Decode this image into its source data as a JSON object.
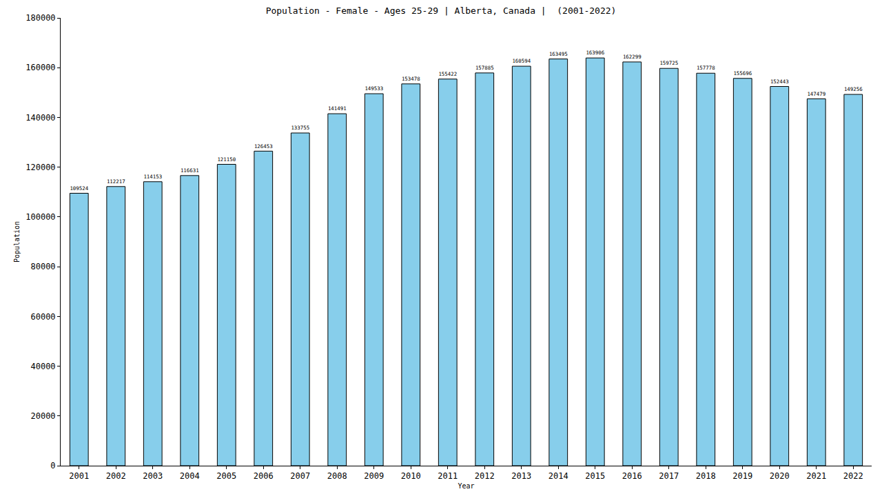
{
  "chart_data": {
    "type": "bar",
    "title": "Population - Female - Ages 25-29 | Alberta, Canada |  (2001-2022)",
    "x_label": "Year",
    "y_label": "Population",
    "categories": [
      "2001",
      "2002",
      "2003",
      "2004",
      "2005",
      "2006",
      "2007",
      "2008",
      "2009",
      "2010",
      "2011",
      "2012",
      "2013",
      "2014",
      "2015",
      "2016",
      "2017",
      "2018",
      "2019",
      "2020",
      "2021",
      "2022"
    ],
    "values": [
      109524,
      112217,
      114153,
      116631,
      121150,
      126453,
      133755,
      141491,
      149533,
      153478,
      155422,
      157885,
      160594,
      163495,
      163906,
      162299,
      159725,
      157778,
      155696,
      152443,
      147479,
      149256
    ],
    "color": "#87ceeb",
    "ylim": [
      0,
      180000
    ],
    "yticks": [
      0,
      20000,
      40000,
      60000,
      80000,
      100000,
      120000,
      140000,
      160000,
      180000
    ],
    "grid": false,
    "data_labels": true
  }
}
